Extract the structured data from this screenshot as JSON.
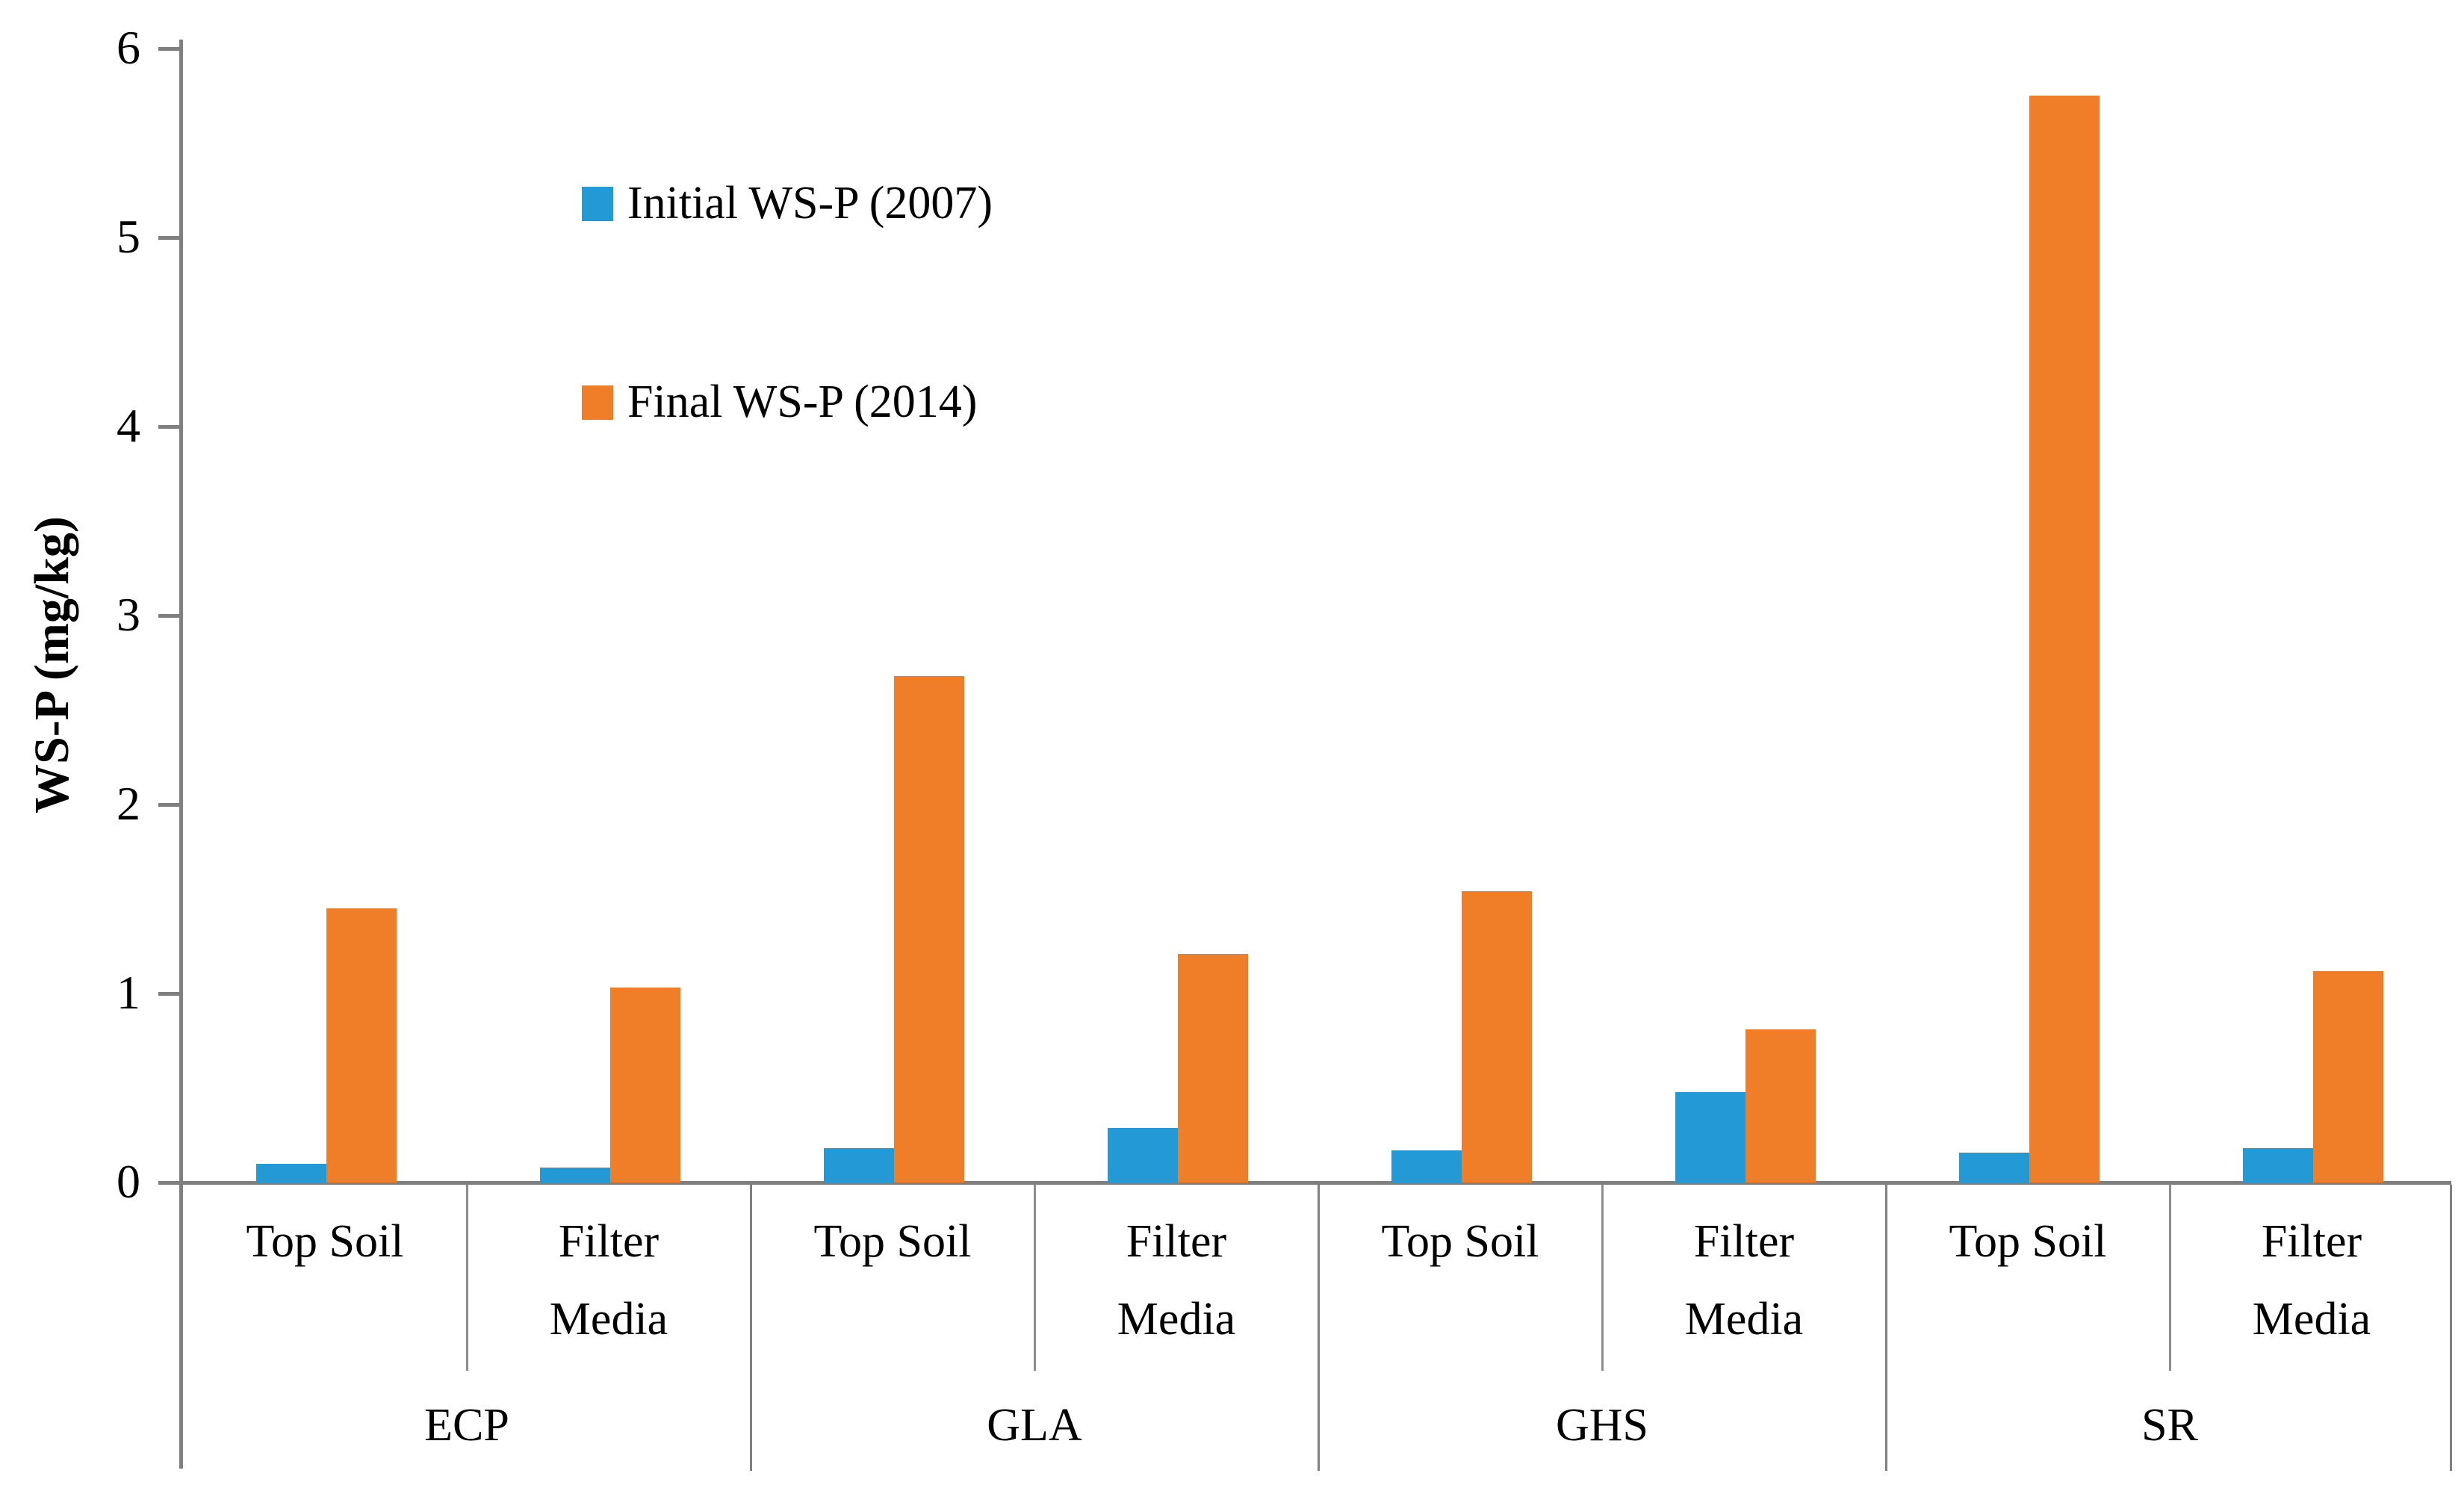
{
  "figure": {
    "background": "#ffffff",
    "axis_color": "#7f7f7f",
    "separator_color": "#8c8c8c"
  },
  "chart_data": {
    "type": "bar",
    "title": "",
    "ylabel": "WS-P (mg/kg)",
    "xlabel": "",
    "ylim": [
      0,
      6
    ],
    "y_tick_labels": [
      "0",
      "1",
      "2",
      "3",
      "4",
      "5",
      "6"
    ],
    "grid": "off",
    "legend_position": "upper-left-inside",
    "groups": [
      {
        "label": "ECP",
        "subcategories": [
          "Top Soil",
          "Filter Media"
        ]
      },
      {
        "label": "GLA",
        "subcategories": [
          "Top Soil",
          "Filter Media"
        ]
      },
      {
        "label": "GHS",
        "subcategories": [
          "Top Soil",
          "Filter Media"
        ]
      },
      {
        "label": "SR",
        "subcategories": [
          "Top Soil",
          "Filter Media"
        ]
      }
    ],
    "categories": [
      "ECP Top Soil",
      "ECP Filter Media",
      "GLA Top Soil",
      "GLA Filter Media",
      "GHS Top Soil",
      "GHS Filter Media",
      "SR Top Soil",
      "SR Filter Media"
    ],
    "series": [
      {
        "name": "Initial WS-P (2007)",
        "color": "#2399d5",
        "values": [
          0.1,
          0.08,
          0.18,
          0.29,
          0.17,
          0.48,
          0.16,
          0.18
        ]
      },
      {
        "name": "Final WS-P (2014)",
        "color": "#f07d28",
        "values": [
          1.45,
          1.03,
          2.68,
          1.21,
          1.54,
          0.81,
          5.75,
          1.12
        ]
      }
    ]
  }
}
